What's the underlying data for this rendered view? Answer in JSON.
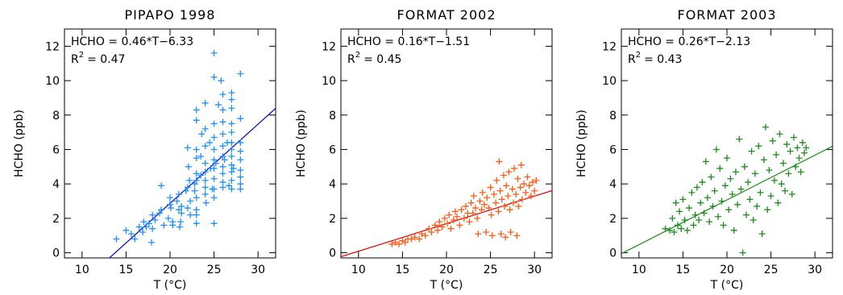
{
  "chart_data": [
    {
      "type": "scatter",
      "title": "PIPAPO 1998",
      "xlabel": "T (°C)",
      "ylabel": "HCHO (ppb)",
      "xlim": [
        8,
        32
      ],
      "ylim": [
        -0.3,
        13
      ],
      "xticks": [
        10,
        15,
        20,
        25,
        30
      ],
      "yticks": [
        0,
        2,
        4,
        6,
        8,
        10,
        12
      ],
      "color": "#1e90ff",
      "line_color": "#0000cc",
      "equation": "HCHO = 0.46*T−6.33",
      "r2_label": "R",
      "r2_exp": "2",
      "r2_value": "= 0.47",
      "fit": {
        "slope": 0.46,
        "intercept": -6.33
      },
      "points": [
        [
          13.9,
          0.8
        ],
        [
          15.0,
          1.3
        ],
        [
          15.6,
          1.1
        ],
        [
          16.0,
          0.8
        ],
        [
          16.5,
          1.5
        ],
        [
          16.9,
          1.2
        ],
        [
          17.0,
          1.8
        ],
        [
          17.3,
          1.5
        ],
        [
          17.6,
          1.7
        ],
        [
          17.9,
          0.6
        ],
        [
          18.0,
          1.4
        ],
        [
          18.0,
          2.2
        ],
        [
          18.3,
          1.9
        ],
        [
          18.8,
          2.3
        ],
        [
          19.0,
          2.5
        ],
        [
          19.0,
          3.9
        ],
        [
          19.3,
          1.6
        ],
        [
          19.8,
          2.0
        ],
        [
          20.0,
          2.8
        ],
        [
          20.0,
          3.2
        ],
        [
          20.1,
          2.6
        ],
        [
          20.3,
          1.8
        ],
        [
          20.3,
          1.6
        ],
        [
          20.8,
          3.0
        ],
        [
          21.0,
          3.4
        ],
        [
          21.0,
          2.5
        ],
        [
          21.1,
          1.5
        ],
        [
          21.2,
          1.8
        ],
        [
          21.3,
          2.3
        ],
        [
          21.3,
          2.7
        ],
        [
          21.8,
          3.6
        ],
        [
          22.0,
          6.1
        ],
        [
          22.0,
          3.8
        ],
        [
          22.0,
          2.6
        ],
        [
          22.1,
          5.0
        ],
        [
          22.2,
          4.2
        ],
        [
          22.3,
          3.0
        ],
        [
          22.3,
          2.2
        ],
        [
          22.8,
          4.0
        ],
        [
          22.8,
          3.6
        ],
        [
          23.0,
          8.3
        ],
        [
          23.0,
          7.7
        ],
        [
          23.0,
          6.0
        ],
        [
          23.0,
          5.5
        ],
        [
          23.0,
          4.6
        ],
        [
          23.0,
          4.2
        ],
        [
          23.0,
          3.2
        ],
        [
          23.0,
          2.5
        ],
        [
          23.0,
          2.2
        ],
        [
          23.0,
          1.7
        ],
        [
          23.5,
          4.5
        ],
        [
          23.5,
          5.6
        ],
        [
          23.6,
          6.9
        ],
        [
          24.0,
          8.7
        ],
        [
          24.0,
          7.2
        ],
        [
          24.0,
          6.2
        ],
        [
          24.0,
          5.2
        ],
        [
          24.0,
          4.7
        ],
        [
          24.0,
          4.2
        ],
        [
          24.0,
          3.8
        ],
        [
          24.0,
          3.4
        ],
        [
          24.1,
          2.9
        ],
        [
          24.5,
          6.4
        ],
        [
          24.6,
          4.9
        ],
        [
          24.8,
          3.7
        ],
        [
          25.0,
          11.6
        ],
        [
          25.0,
          10.2
        ],
        [
          25.0,
          7.5
        ],
        [
          25.0,
          6.7
        ],
        [
          25.0,
          6.0
        ],
        [
          25.0,
          5.4
        ],
        [
          25.0,
          4.9
        ],
        [
          25.0,
          4.3
        ],
        [
          25.0,
          3.7
        ],
        [
          25.0,
          3.2
        ],
        [
          25.0,
          1.7
        ],
        [
          25.2,
          5.2
        ],
        [
          25.5,
          8.6
        ],
        [
          25.8,
          10.0
        ],
        [
          26.0,
          9.2
        ],
        [
          26.0,
          8.3
        ],
        [
          26.0,
          7.6
        ],
        [
          26.0,
          6.9
        ],
        [
          26.0,
          6.2
        ],
        [
          26.0,
          5.6
        ],
        [
          26.0,
          5.0
        ],
        [
          26.0,
          4.6
        ],
        [
          26.0,
          4.1
        ],
        [
          26.0,
          3.8
        ],
        [
          26.2,
          5.4
        ],
        [
          26.5,
          6.4
        ],
        [
          26.7,
          3.9
        ],
        [
          27.0,
          9.3
        ],
        [
          27.0,
          8.9
        ],
        [
          27.0,
          8.4
        ],
        [
          27.0,
          7.5
        ],
        [
          27.0,
          7.0
        ],
        [
          27.0,
          6.4
        ],
        [
          27.0,
          6.0
        ],
        [
          27.0,
          5.6
        ],
        [
          27.0,
          5.1
        ],
        [
          27.0,
          4.7
        ],
        [
          27.0,
          4.2
        ],
        [
          27.0,
          3.7
        ],
        [
          27.2,
          4.9
        ],
        [
          28.0,
          10.4
        ],
        [
          28.0,
          7.8
        ],
        [
          28.0,
          6.4
        ],
        [
          28.0,
          5.9
        ],
        [
          28.0,
          5.4
        ],
        [
          28.0,
          4.8
        ],
        [
          28.0,
          4.4
        ],
        [
          28.0,
          4.0
        ],
        [
          28.0,
          3.7
        ]
      ]
    },
    {
      "type": "scatter",
      "title": "FORMAT 2002",
      "xlabel": "T (°C)",
      "ylabel": "HCHO (ppb)",
      "xlim": [
        8,
        32
      ],
      "ylim": [
        -0.3,
        13
      ],
      "xticks": [
        10,
        15,
        20,
        25,
        30
      ],
      "yticks": [
        0,
        2,
        4,
        6,
        8,
        10,
        12
      ],
      "color": "#ff5a14",
      "line_color": "#e00000",
      "equation": "HCHO = 0.16*T−1.51",
      "r2_label": "R",
      "r2_exp": "2",
      "r2_value": "= 0.45",
      "fit": {
        "slope": 0.16,
        "intercept": -1.51
      },
      "points": [
        [
          13.8,
          0.5
        ],
        [
          14.2,
          0.6
        ],
        [
          14.6,
          0.5
        ],
        [
          15.0,
          0.7
        ],
        [
          15.3,
          0.6
        ],
        [
          15.6,
          0.8
        ],
        [
          16.0,
          0.8
        ],
        [
          16.4,
          0.9
        ],
        [
          16.9,
          0.8
        ],
        [
          17.2,
          1.1
        ],
        [
          17.6,
          1.0
        ],
        [
          18.0,
          1.4
        ],
        [
          18.3,
          1.2
        ],
        [
          18.7,
          1.6
        ],
        [
          19.0,
          1.3
        ],
        [
          19.2,
          1.8
        ],
        [
          19.5,
          1.5
        ],
        [
          19.8,
          2.0
        ],
        [
          20.1,
          1.7
        ],
        [
          20.3,
          2.2
        ],
        [
          20.5,
          1.4
        ],
        [
          20.8,
          1.9
        ],
        [
          21.0,
          2.4
        ],
        [
          21.2,
          2.1
        ],
        [
          21.5,
          1.6
        ],
        [
          21.7,
          2.5
        ],
        [
          22.0,
          2.0
        ],
        [
          22.2,
          2.7
        ],
        [
          22.4,
          2.3
        ],
        [
          22.6,
          1.8
        ],
        [
          22.8,
          2.9
        ],
        [
          23.0,
          2.3
        ],
        [
          23.1,
          3.3
        ],
        [
          23.3,
          2.6
        ],
        [
          23.5,
          2.0
        ],
        [
          23.6,
          1.1
        ],
        [
          23.8,
          3.0
        ],
        [
          24.0,
          2.5
        ],
        [
          24.1,
          3.5
        ],
        [
          24.3,
          2.8
        ],
        [
          24.5,
          1.2
        ],
        [
          24.6,
          3.2
        ],
        [
          24.8,
          2.6
        ],
        [
          25.0,
          3.8
        ],
        [
          25.1,
          2.2
        ],
        [
          25.2,
          1.0
        ],
        [
          25.4,
          3.4
        ],
        [
          25.6,
          2.9
        ],
        [
          25.7,
          4.2
        ],
        [
          25.9,
          2.4
        ],
        [
          26.0,
          5.3
        ],
        [
          26.1,
          3.6
        ],
        [
          26.2,
          1.1
        ],
        [
          26.3,
          3.1
        ],
        [
          26.5,
          4.5
        ],
        [
          26.6,
          2.7
        ],
        [
          26.7,
          0.9
        ],
        [
          26.8,
          3.9
        ],
        [
          27.0,
          3.3
        ],
        [
          27.1,
          4.7
        ],
        [
          27.2,
          2.5
        ],
        [
          27.3,
          1.2
        ],
        [
          27.5,
          3.7
        ],
        [
          27.6,
          2.9
        ],
        [
          27.7,
          4.9
        ],
        [
          27.9,
          3.4
        ],
        [
          28.0,
          1.0
        ],
        [
          28.1,
          4.3
        ],
        [
          28.2,
          2.7
        ],
        [
          28.4,
          3.8
        ],
        [
          28.5,
          5.1
        ],
        [
          28.6,
          3.1
        ],
        [
          28.8,
          4.0
        ],
        [
          29.0,
          3.5
        ],
        [
          29.2,
          4.4
        ],
        [
          29.4,
          3.9
        ],
        [
          29.6,
          3.3
        ],
        [
          29.8,
          4.1
        ],
        [
          30.0,
          3.6
        ],
        [
          30.2,
          4.2
        ]
      ]
    },
    {
      "type": "scatter",
      "title": "FORMAT 2003",
      "xlabel": "T (°C)",
      "ylabel": "HCHO (ppb)",
      "xlim": [
        8,
        32
      ],
      "ylim": [
        -0.3,
        13
      ],
      "xticks": [
        10,
        15,
        20,
        25,
        30
      ],
      "yticks": [
        0,
        2,
        4,
        6,
        8,
        10,
        12
      ],
      "color": "#1c8c1c",
      "line_color": "#1c8c1c",
      "equation": "HCHO = 0.26*T−2.13",
      "r2_label": "R",
      "r2_exp": "2",
      "r2_value": "= 0.43",
      "fit": {
        "slope": 0.26,
        "intercept": -2.13
      },
      "points": [
        [
          13.0,
          1.4
        ],
        [
          13.5,
          1.3
        ],
        [
          13.8,
          2.0
        ],
        [
          14.0,
          1.2
        ],
        [
          14.2,
          2.9
        ],
        [
          14.4,
          1.6
        ],
        [
          14.6,
          2.4
        ],
        [
          14.8,
          1.4
        ],
        [
          15.0,
          3.1
        ],
        [
          15.2,
          1.9
        ],
        [
          15.5,
          1.3
        ],
        [
          15.7,
          2.6
        ],
        [
          16.0,
          3.5
        ],
        [
          16.2,
          1.6
        ],
        [
          16.4,
          2.2
        ],
        [
          16.6,
          3.8
        ],
        [
          16.8,
          1.9
        ],
        [
          17.0,
          2.9
        ],
        [
          17.2,
          4.1
        ],
        [
          17.4,
          2.3
        ],
        [
          17.6,
          5.3
        ],
        [
          17.8,
          3.2
        ],
        [
          18.0,
          1.8
        ],
        [
          18.2,
          4.4
        ],
        [
          18.4,
          2.7
        ],
        [
          18.6,
          3.6
        ],
        [
          18.8,
          6.0
        ],
        [
          19.0,
          2.1
        ],
        [
          19.2,
          4.9
        ],
        [
          19.4,
          3.0
        ],
        [
          19.6,
          1.6
        ],
        [
          19.8,
          3.9
        ],
        [
          20.0,
          5.5
        ],
        [
          20.2,
          2.5
        ],
        [
          20.4,
          4.3
        ],
        [
          20.6,
          3.4
        ],
        [
          20.8,
          1.3
        ],
        [
          21.0,
          4.7
        ],
        [
          21.2,
          2.8
        ],
        [
          21.4,
          6.6
        ],
        [
          21.6,
          3.7
        ],
        [
          21.8,
          0.0
        ],
        [
          22.0,
          5.0
        ],
        [
          22.2,
          2.2
        ],
        [
          22.4,
          4.1
        ],
        [
          22.6,
          3.1
        ],
        [
          22.8,
          5.9
        ],
        [
          23.0,
          1.9
        ],
        [
          23.2,
          4.6
        ],
        [
          23.4,
          2.7
        ],
        [
          23.6,
          6.2
        ],
        [
          23.8,
          3.5
        ],
        [
          24.0,
          1.1
        ],
        [
          24.2,
          5.4
        ],
        [
          24.4,
          7.3
        ],
        [
          24.6,
          2.5
        ],
        [
          24.8,
          4.8
        ],
        [
          25.0,
          3.3
        ],
        [
          25.2,
          6.5
        ],
        [
          25.4,
          4.2
        ],
        [
          25.6,
          5.7
        ],
        [
          25.8,
          2.9
        ],
        [
          26.0,
          6.9
        ],
        [
          26.2,
          4.0
        ],
        [
          26.4,
          5.2
        ],
        [
          26.6,
          3.6
        ],
        [
          26.8,
          6.3
        ],
        [
          27.0,
          4.6
        ],
        [
          27.2,
          5.9
        ],
        [
          27.4,
          3.4
        ],
        [
          27.6,
          6.7
        ],
        [
          27.8,
          5.0
        ],
        [
          28.0,
          6.1
        ],
        [
          28.2,
          5.5
        ],
        [
          28.4,
          4.7
        ],
        [
          28.6,
          6.4
        ],
        [
          28.8,
          5.8
        ],
        [
          29.0,
          6.1
        ]
      ]
    }
  ]
}
